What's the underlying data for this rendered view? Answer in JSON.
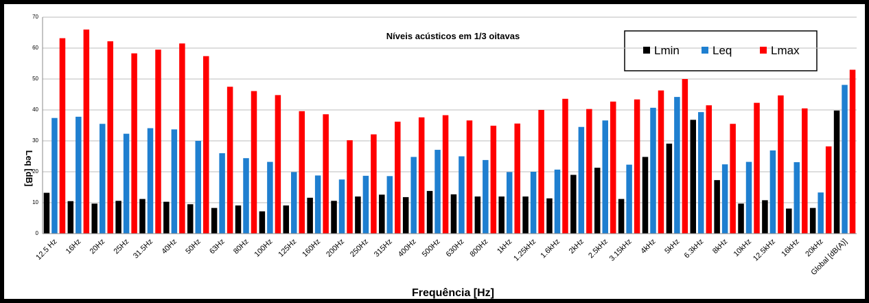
{
  "chart_data": {
    "type": "bar",
    "title": "Níveis acústicos em 1/3 oitavas",
    "x_label": "Frequência [Hz]",
    "y_label": "Leq [dB]",
    "categories": [
      "12.5 Hz",
      "16Hz",
      "20Hz",
      "25Hz",
      "31.5Hz",
      "40Hz",
      "50Hz",
      "63Hz",
      "80Hz",
      "100Hz",
      "125Hz",
      "160Hz",
      "200Hz",
      "250Hz",
      "315Hz",
      "400Hz",
      "500Hz",
      "630Hz",
      "800Hz",
      "1kHz",
      "1.25kHz",
      "1.6kHz",
      "2kHz",
      "2.5kHz",
      "3.15kHz",
      "4kHz",
      "5kHz",
      "6.3kHz",
      "8kHz",
      "10kHz",
      "12.5kHz",
      "16kHz",
      "20kHz",
      "Global [dB(A)]"
    ],
    "series": [
      {
        "name": "Lmin",
        "color": "#000000",
        "values": [
          13.2,
          10.5,
          9.7,
          10.6,
          11.2,
          10.3,
          9.5,
          8.3,
          9.1,
          7.2,
          9.1,
          11.6,
          10.6,
          12.0,
          12.6,
          11.8,
          13.8,
          12.7,
          12.0,
          12.0,
          12.0,
          11.4,
          19.0,
          21.3,
          11.2,
          24.8,
          29.1,
          36.8,
          17.3,
          9.7,
          10.8,
          8.1,
          8.3,
          39.8
        ]
      },
      {
        "name": "Leq",
        "color": "#1f7fd0",
        "values": [
          37.4,
          37.8,
          35.5,
          32.3,
          34.1,
          33.7,
          30.0,
          26.0,
          24.4,
          23.2,
          19.9,
          18.8,
          17.5,
          18.7,
          18.6,
          24.8,
          27.1,
          25.0,
          23.8,
          19.9,
          20.0,
          20.7,
          34.5,
          36.6,
          22.3,
          40.7,
          44.2,
          39.3,
          22.4,
          23.2,
          26.9,
          23.1,
          13.3,
          48.1
        ]
      },
      {
        "name": "Lmax",
        "color": "#ff0000",
        "values": [
          63.2,
          66.0,
          62.2,
          58.3,
          59.5,
          61.5,
          57.4,
          47.5,
          46.1,
          44.8,
          39.6,
          38.6,
          30.2,
          32.1,
          36.2,
          37.6,
          38.3,
          36.6,
          34.9,
          35.6,
          40.0,
          43.6,
          40.3,
          42.7,
          43.4,
          46.3,
          50.0,
          41.5,
          35.5,
          42.3,
          44.7,
          40.5,
          28.2,
          53.0
        ]
      }
    ],
    "ylim": [
      0,
      70
    ],
    "yticks": [
      0,
      10,
      20,
      30,
      40,
      50,
      60,
      70
    ],
    "grid": true,
    "legend": "top-right"
  }
}
